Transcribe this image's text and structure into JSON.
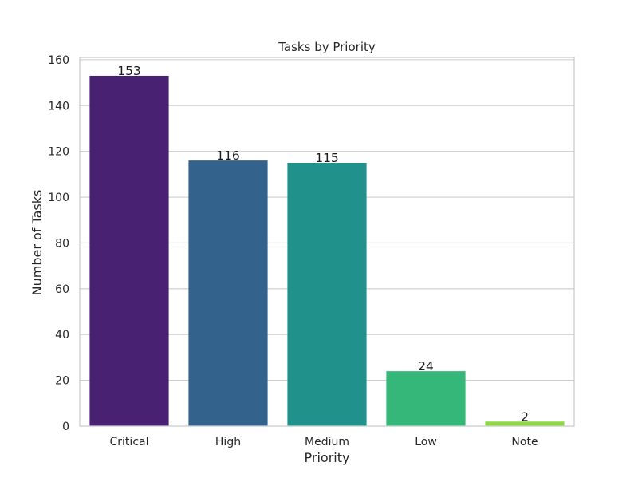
{
  "chart_data": {
    "type": "bar",
    "title": "Tasks by Priority",
    "xlabel": "Priority",
    "ylabel": "Number of Tasks",
    "categories": [
      "Critical",
      "High",
      "Medium",
      "Low",
      "Note"
    ],
    "values": [
      153,
      116,
      115,
      24,
      2
    ],
    "data_labels": [
      "153",
      "116",
      "115",
      "24",
      "2"
    ],
    "colors": [
      "#482173",
      "#33638d",
      "#21918c",
      "#35b779",
      "#8fd744"
    ],
    "ylim": [
      0,
      161
    ],
    "yticks": [
      0,
      20,
      40,
      60,
      80,
      100,
      120,
      140,
      160
    ],
    "ytick_labels": [
      "0",
      "20",
      "40",
      "60",
      "80",
      "100",
      "120",
      "140",
      "160"
    ],
    "grid": "horizontal",
    "legend": "none"
  }
}
